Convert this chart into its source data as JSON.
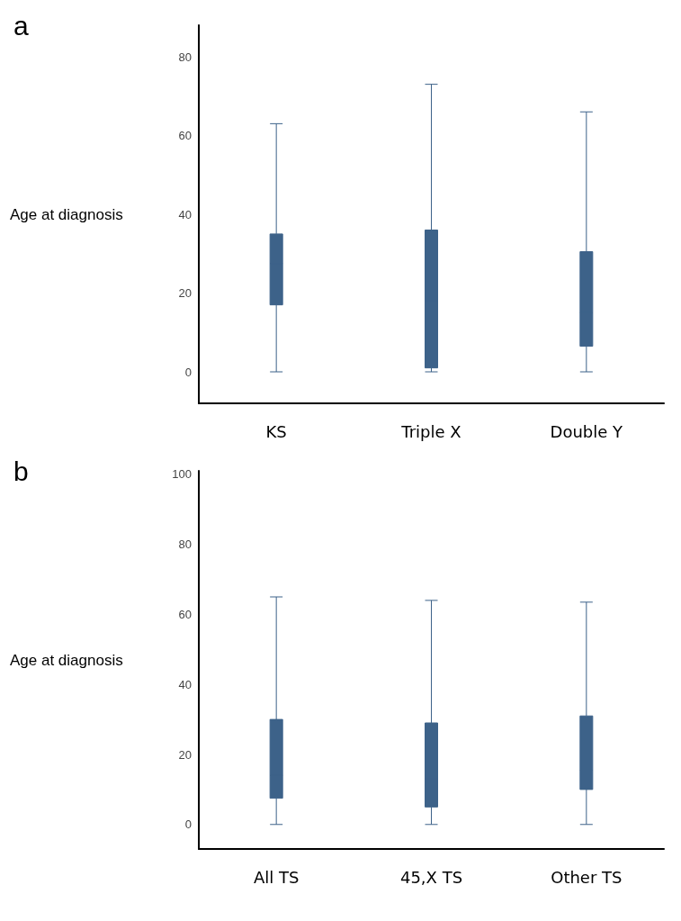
{
  "chart_data": [
    {
      "type": "box",
      "title": "a",
      "ylabel": "Age at diagnosis",
      "categories": [
        "KS",
        "Triple X",
        "Double Y"
      ],
      "color": "#3d6289",
      "ylim": [
        -8,
        88
      ],
      "yticks": [
        0,
        20,
        40,
        60,
        80
      ],
      "grid": false,
      "boxes": [
        {
          "low": 0,
          "q1": 17,
          "median": 27.5,
          "q3": 35,
          "high": 63
        },
        {
          "low": 0,
          "q1": 1,
          "median": 18,
          "q3": 36,
          "high": 73
        },
        {
          "low": 0,
          "q1": 6.5,
          "median": 15,
          "q3": 30.5,
          "high": 66
        }
      ]
    },
    {
      "type": "box",
      "title": "b",
      "ylabel": "Age at diagnosis",
      "categories": [
        "All TS",
        "45,X TS",
        "Other TS"
      ],
      "color": "#3d6289",
      "ylim": [
        -7,
        101
      ],
      "yticks": [
        0,
        20,
        40,
        60,
        80,
        100
      ],
      "grid": false,
      "boxes": [
        {
          "low": 0,
          "q1": 7.5,
          "median": 14,
          "q3": 30,
          "high": 65
        },
        {
          "low": 0,
          "q1": 5,
          "median": 13,
          "q3": 29,
          "high": 64
        },
        {
          "low": 0,
          "q1": 10,
          "median": 15.5,
          "q3": 31,
          "high": 63.5
        }
      ]
    }
  ]
}
